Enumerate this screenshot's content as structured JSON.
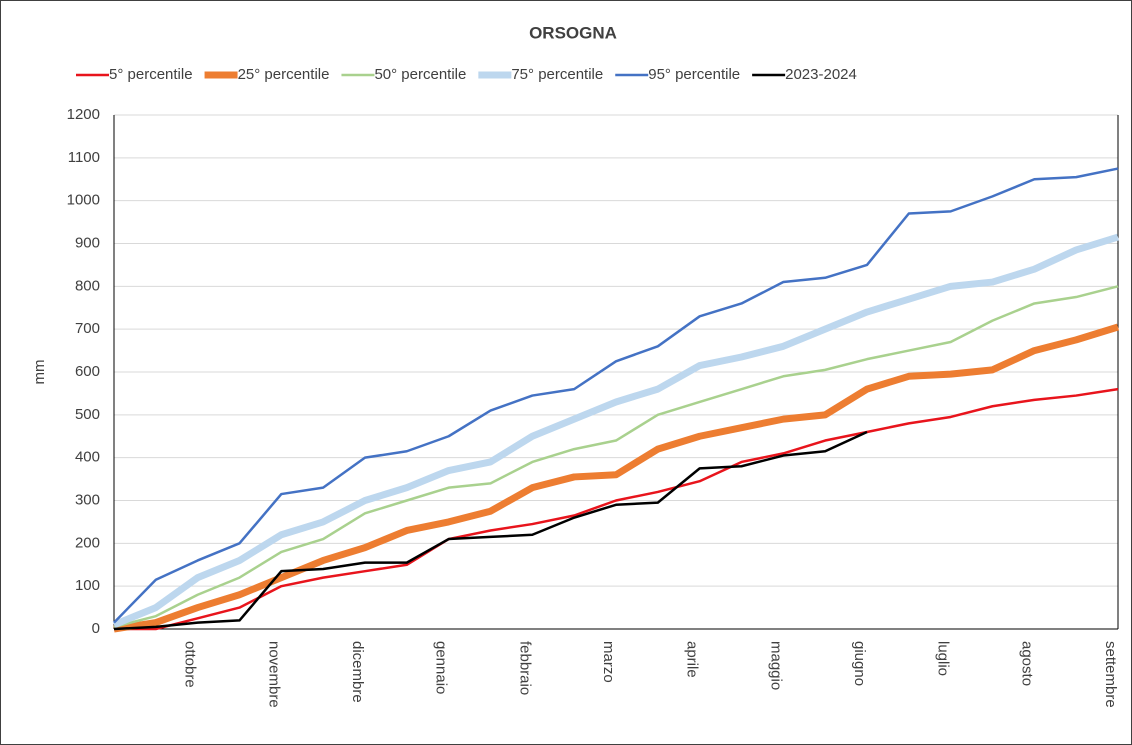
{
  "chart_data": {
    "type": "line",
    "title": "ORSOGNA",
    "y_label": "mm",
    "categories": [
      null,
      null,
      "ottobre",
      null,
      "novembre",
      null,
      "dicembre",
      null,
      "gennaio",
      null,
      "febbraio",
      null,
      "marzo",
      null,
      "aprile",
      null,
      "maggio",
      null,
      "giugno",
      null,
      "luglio",
      null,
      "agosto",
      null,
      "settembre"
    ],
    "series": [
      {
        "name": "5° percentile",
        "color": "#e8141c",
        "line_width": 2.5,
        "values": [
          0,
          0,
          25,
          50,
          100,
          120,
          135,
          150,
          210,
          230,
          245,
          265,
          300,
          320,
          345,
          390,
          410,
          440,
          460,
          480,
          495,
          520,
          535,
          545,
          560
        ]
      },
      {
        "name": "25° percentile",
        "color": "#ed7d31",
        "line_width": 7,
        "values": [
          0,
          15,
          50,
          80,
          120,
          160,
          190,
          230,
          250,
          275,
          330,
          355,
          360,
          420,
          450,
          470,
          490,
          500,
          560,
          590,
          595,
          605,
          650,
          675,
          705
        ]
      },
      {
        "name": "50° percentile",
        "color": "#a9d18e",
        "line_width": 2.5,
        "values": [
          5,
          30,
          80,
          120,
          180,
          210,
          270,
          300,
          330,
          340,
          390,
          420,
          440,
          500,
          530,
          560,
          590,
          605,
          630,
          650,
          670,
          720,
          760,
          775,
          800
        ]
      },
      {
        "name": "75° percentile",
        "color": "#bdd7ee",
        "line_width": 7,
        "values": [
          10,
          50,
          120,
          160,
          220,
          250,
          300,
          330,
          370,
          390,
          450,
          490,
          530,
          560,
          615,
          635,
          660,
          700,
          740,
          770,
          800,
          810,
          840,
          885,
          915
        ]
      },
      {
        "name": "95° percentile",
        "color": "#4472c4",
        "line_width": 2.5,
        "values": [
          15,
          115,
          160,
          200,
          315,
          330,
          400,
          415,
          450,
          510,
          545,
          560,
          625,
          660,
          730,
          760,
          810,
          820,
          850,
          970,
          975,
          1010,
          1050,
          1055,
          1075
        ]
      },
      {
        "name": "2023-2024",
        "color": "#000000",
        "line_width": 2.5,
        "values": [
          0,
          5,
          15,
          20,
          135,
          140,
          155,
          155,
          210,
          215,
          220,
          260,
          290,
          295,
          375,
          380,
          405,
          415,
          460,
          null,
          null,
          null,
          null,
          null,
          null
        ]
      }
    ],
    "ylim": [
      0,
      1200
    ],
    "yticks": [
      0,
      100,
      200,
      300,
      400,
      500,
      600,
      700,
      800,
      900,
      1000,
      1100,
      1200
    ],
    "grid": true,
    "legend": "top"
  }
}
